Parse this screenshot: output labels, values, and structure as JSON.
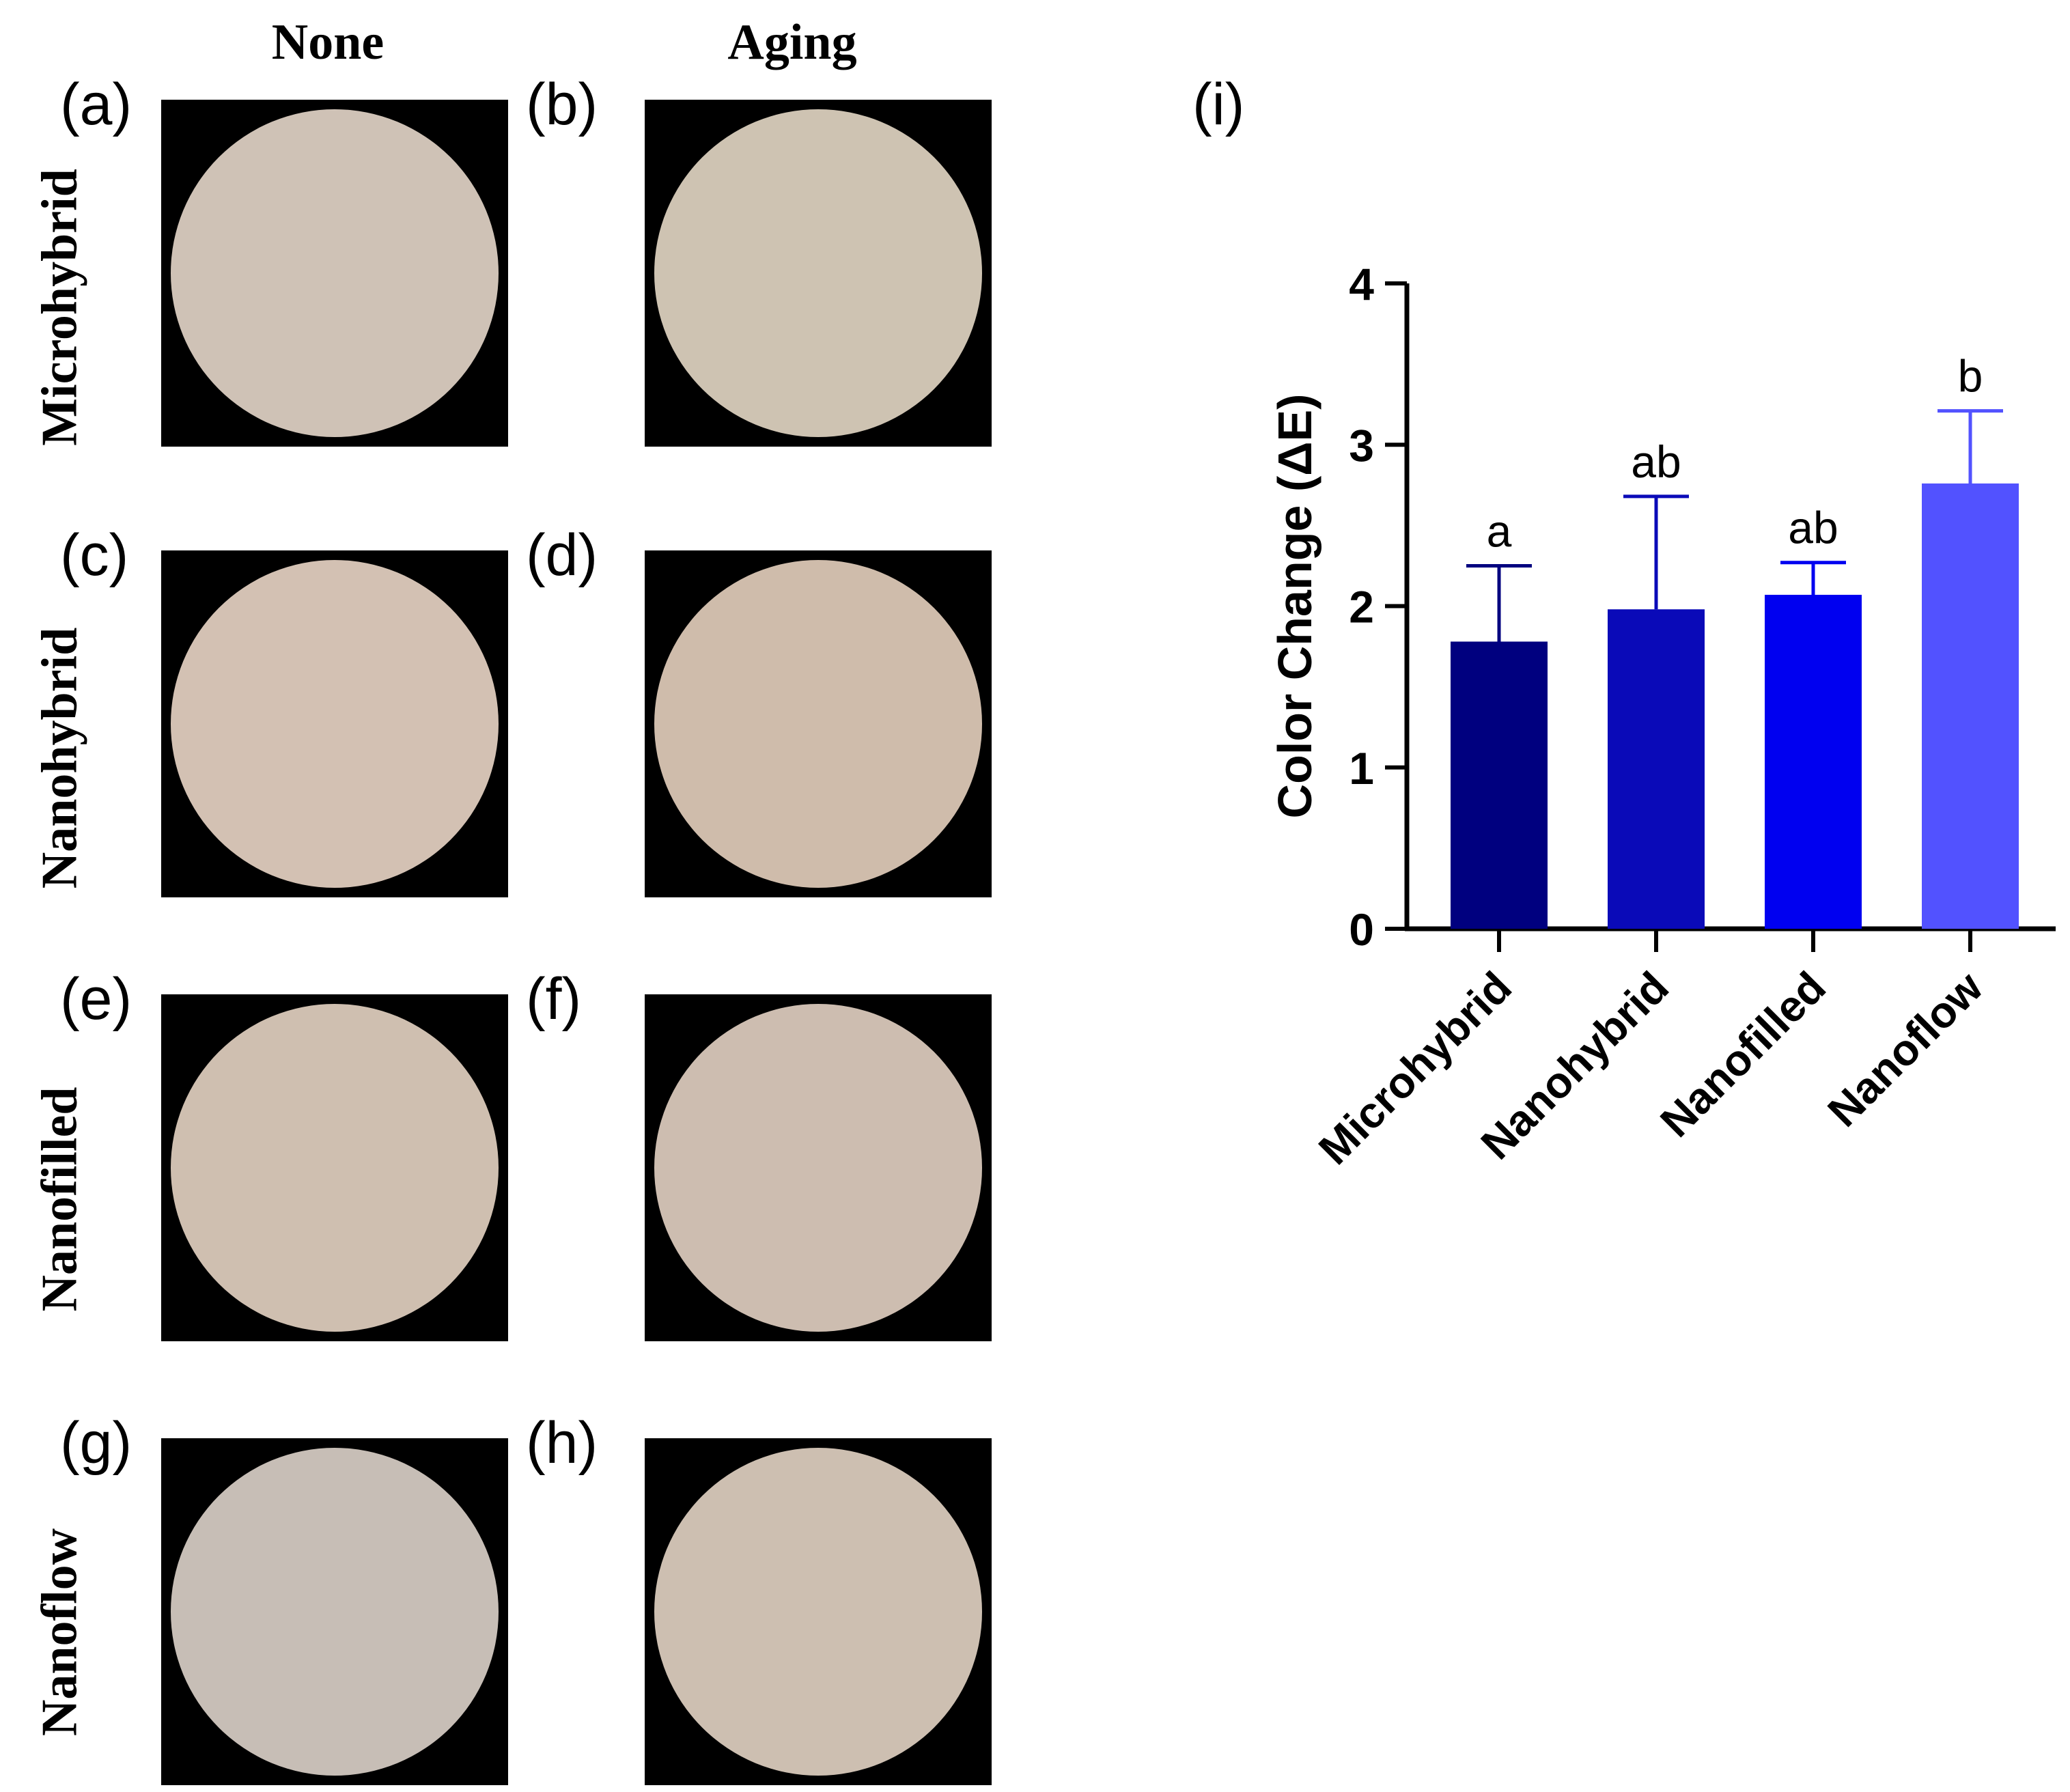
{
  "headers": {
    "none": "None",
    "aging": "Aging"
  },
  "rows": [
    {
      "label": "Microhybrid",
      "left_panel": "(a)",
      "right_panel": "(b)",
      "left_color": "#cfc2b6",
      "right_color": "#cec3b2"
    },
    {
      "label": "Nanohybrid",
      "left_panel": "(c)",
      "right_panel": "(d)",
      "left_color": "#d3c1b3",
      "right_color": "#cfbcab"
    },
    {
      "label": "Nanofilled",
      "left_panel": "(e)",
      "right_panel": "(f)",
      "left_color": "#cfbfb0",
      "right_color": "#cdbdb0"
    },
    {
      "label": "Nanoflow",
      "left_panel": "(g)",
      "right_panel": "(h)",
      "left_color": "#c7beb6",
      "right_color": "#cdbfb1"
    }
  ],
  "chart_panel_label": "(i)",
  "chart_data": {
    "type": "bar",
    "title": "",
    "xlabel": "",
    "ylabel": "Color Change (ΔE)",
    "ylim": [
      0,
      4
    ],
    "yticks": [
      0,
      1,
      2,
      3,
      4
    ],
    "categories": [
      "Microhybrid",
      "Nanohybrid",
      "Nanofilled",
      "Nanoflow"
    ],
    "values": [
      1.78,
      1.98,
      2.07,
      2.76
    ],
    "errors": [
      0.47,
      0.7,
      0.2,
      0.45
    ],
    "significance": [
      "a",
      "ab",
      "ab",
      "b"
    ],
    "colors": [
      "#00007f",
      "#0a0ab8",
      "#0000f0",
      "#5252ff"
    ]
  }
}
